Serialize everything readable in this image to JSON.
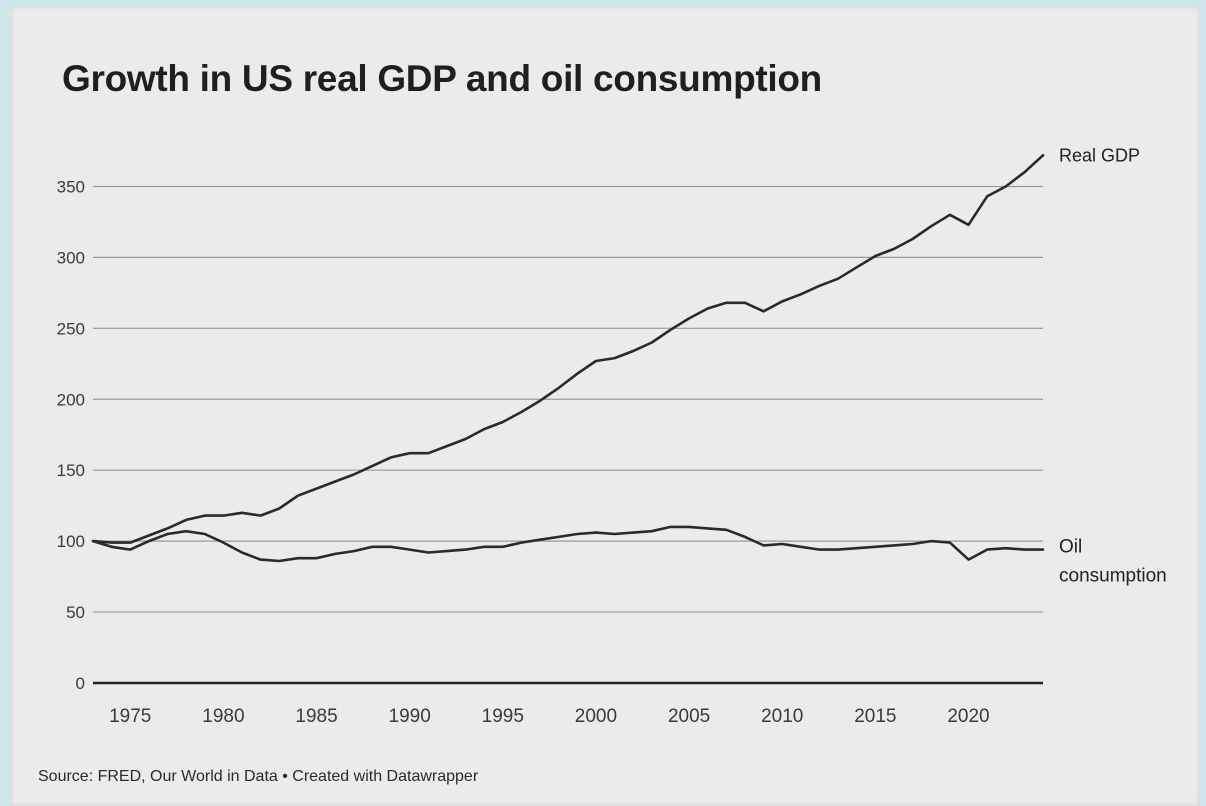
{
  "chart_data": {
    "type": "line",
    "title": "Growth in US real GDP and oil consumption",
    "source": "Source: FRED, Our World in Data • Created with Datawrapper",
    "xlabel": "",
    "ylabel": "",
    "xlim": [
      1973,
      2024
    ],
    "ylim": [
      0,
      375
    ],
    "y_ticks": [
      0,
      50,
      100,
      150,
      200,
      250,
      300,
      350
    ],
    "x_ticks": [
      1975,
      1980,
      1985,
      1990,
      1995,
      2000,
      2005,
      2010,
      2015,
      2020
    ],
    "grid": true,
    "legend": "direct labels at line ends",
    "colors": {
      "line": "#2a2a2a",
      "grid": "#9a9a9a",
      "axis": "#222222",
      "text": "#3a3a3a"
    },
    "series": [
      {
        "name": "Real GDP",
        "x": [
          1973,
          1974,
          1975,
          1976,
          1977,
          1978,
          1979,
          1980,
          1981,
          1982,
          1983,
          1984,
          1985,
          1986,
          1987,
          1988,
          1989,
          1990,
          1991,
          1992,
          1993,
          1994,
          1995,
          1996,
          1997,
          1998,
          1999,
          2000,
          2001,
          2002,
          2003,
          2004,
          2005,
          2006,
          2007,
          2008,
          2009,
          2010,
          2011,
          2012,
          2013,
          2014,
          2015,
          2016,
          2017,
          2018,
          2019,
          2020,
          2021,
          2022,
          2023,
          2024
        ],
        "values": [
          100,
          99,
          99,
          104,
          109,
          115,
          118,
          118,
          120,
          118,
          123,
          132,
          137,
          142,
          147,
          153,
          159,
          162,
          162,
          167,
          172,
          179,
          184,
          191,
          199,
          208,
          218,
          227,
          229,
          234,
          240,
          249,
          257,
          264,
          268,
          268,
          262,
          269,
          274,
          280,
          285,
          293,
          301,
          306,
          313,
          322,
          330,
          323,
          343,
          350,
          360,
          372
        ]
      },
      {
        "name": "Oil consumption",
        "x": [
          1973,
          1974,
          1975,
          1976,
          1977,
          1978,
          1979,
          1980,
          1981,
          1982,
          1983,
          1984,
          1985,
          1986,
          1987,
          1988,
          1989,
          1990,
          1991,
          1992,
          1993,
          1994,
          1995,
          1996,
          1997,
          1998,
          1999,
          2000,
          2001,
          2002,
          2003,
          2004,
          2005,
          2006,
          2007,
          2008,
          2009,
          2010,
          2011,
          2012,
          2013,
          2014,
          2015,
          2016,
          2017,
          2018,
          2019,
          2020,
          2021,
          2022,
          2023,
          2024
        ],
        "values": [
          100,
          96,
          94,
          100,
          105,
          107,
          105,
          99,
          92,
          87,
          86,
          88,
          88,
          91,
          93,
          96,
          96,
          94,
          92,
          93,
          94,
          96,
          96,
          99,
          101,
          103,
          105,
          106,
          105,
          106,
          107,
          110,
          110,
          109,
          108,
          103,
          97,
          98,
          96,
          94,
          94,
          95,
          96,
          97,
          98,
          100,
          99,
          87,
          94,
          95,
          94,
          94
        ]
      }
    ]
  }
}
